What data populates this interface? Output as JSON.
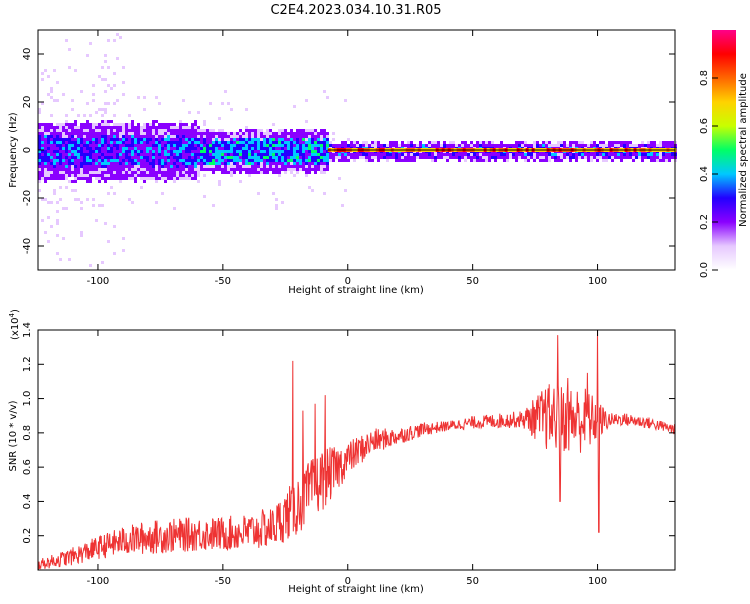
{
  "title": "C2E4.2023.034.10.31.R05",
  "colors": {
    "axis": "#000000",
    "snr_line": "#ee3333",
    "background": "#ffffff"
  },
  "chart_data": [
    {
      "type": "heatmap",
      "xlabel": "Height of straight line (km)",
      "ylabel": "Frequency (Hz)",
      "xlim": [
        -124,
        131
      ],
      "ylim": [
        -50,
        50
      ],
      "xticks": [
        -100,
        -50,
        0,
        50,
        100
      ],
      "yticks": [
        -40,
        -20,
        0,
        20,
        40
      ],
      "xtick_labels": [
        "-100",
        "-50",
        "0",
        "50",
        "100"
      ],
      "ytick_labels": [
        "-40",
        "-20",
        "0",
        "20",
        "40"
      ],
      "colorbar": {
        "label": "Normalized spectral amplitude",
        "range": [
          0,
          1
        ],
        "ticks": [
          0.0,
          0.2,
          0.4,
          0.6,
          0.8
        ],
        "tick_labels": [
          "0.0",
          "0.2",
          "0.4",
          "0.6",
          "0.8"
        ],
        "colormap": [
          "#ffffff",
          "#e6c8ff",
          "#8a00ff",
          "#2200ff",
          "#00c8ff",
          "#00ff66",
          "#c8ff00",
          "#ffd200",
          "#ff6600",
          "#ff0000",
          "#ff0088"
        ]
      },
      "bands": [
        {
          "x_from": -124,
          "x_to": -60,
          "core_halfwidth_hz": 6,
          "halo_halfwidth_hz": 12,
          "core_level": 0.28
        },
        {
          "x_from": -60,
          "x_to": -8,
          "core_halfwidth_hz": 5,
          "halo_halfwidth_hz": 9,
          "core_level": 0.35
        },
        {
          "x_from": -8,
          "x_to": 131,
          "core_halfwidth_hz": 2,
          "halo_halfwidth_hz": 4,
          "core_level": 0.25
        }
      ],
      "ridge": {
        "frequency_hz": 0,
        "level": 0.9,
        "x_from": -8,
        "x_to": 131
      }
    },
    {
      "type": "line",
      "xlabel": "Height of straight line (km)",
      "ylabel": "SNR (10 * v/v)",
      "y_multiplier_label": "(x10",
      "y_multiplier_exp": "4",
      "y_multiplier_close": ")",
      "xlim": [
        -124,
        131
      ],
      "ylim": [
        0,
        1.4
      ],
      "xticks": [
        -100,
        -50,
        0,
        50,
        100
      ],
      "yticks": [
        0.2,
        0.4,
        0.6,
        0.8,
        1.0,
        1.2,
        1.4
      ],
      "xtick_labels": [
        "-100",
        "-50",
        "0",
        "50",
        "100"
      ],
      "ytick_labels": [
        "0.2",
        "0.4",
        "0.6",
        "0.8",
        "1.0",
        "1.2",
        "1.4"
      ],
      "trend_x": [
        -124,
        -110,
        -100,
        -90,
        -80,
        -70,
        -60,
        -50,
        -40,
        -30,
        -20,
        -15,
        -10,
        -5,
        0,
        10,
        20,
        30,
        40,
        50,
        60,
        70,
        80,
        90,
        100,
        110,
        120,
        131
      ],
      "trend_y": [
        0.03,
        0.08,
        0.13,
        0.17,
        0.19,
        0.2,
        0.21,
        0.21,
        0.22,
        0.25,
        0.38,
        0.46,
        0.53,
        0.58,
        0.65,
        0.75,
        0.78,
        0.82,
        0.84,
        0.86,
        0.87,
        0.88,
        0.89,
        0.88,
        0.87,
        0.88,
        0.86,
        0.82
      ],
      "noise_amp_x": [
        -124,
        -80,
        -50,
        -30,
        -20,
        -10,
        0,
        20,
        40,
        70,
        80,
        95,
        105,
        131
      ],
      "noise_amp_y": [
        0.03,
        0.1,
        0.1,
        0.12,
        0.18,
        0.18,
        0.1,
        0.05,
        0.03,
        0.05,
        0.2,
        0.2,
        0.04,
        0.03
      ],
      "spikes": [
        {
          "x": -22,
          "y": 1.22
        },
        {
          "x": -18,
          "y": 0.93
        },
        {
          "x": -13,
          "y": 0.97
        },
        {
          "x": -9,
          "y": 1.02
        },
        {
          "x": 84,
          "y": 1.37
        },
        {
          "x": 88,
          "y": 1.12
        },
        {
          "x": 85,
          "y": 0.4
        },
        {
          "x": 96,
          "y": 1.15
        },
        {
          "x": 100,
          "y": 1.41
        },
        {
          "x": 100.5,
          "y": 0.22
        }
      ]
    }
  ]
}
